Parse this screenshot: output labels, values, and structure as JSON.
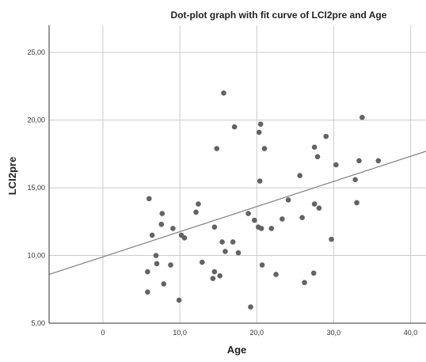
{
  "chart_data": {
    "type": "scatter",
    "title": "Dot-plot graph with fit curve of LCI2pre and Age",
    "xlabel": "Age",
    "ylabel": "LCI2pre",
    "xlim": [
      -7,
      42
    ],
    "ylim": [
      5,
      27
    ],
    "grid": true,
    "legend": "none",
    "x_ticks": [
      "0",
      "10,0",
      "20,0",
      "30,0",
      "40,0"
    ],
    "x_tick_values": [
      0,
      10,
      20,
      30,
      40
    ],
    "y_ticks": [
      "5,00",
      "10,00",
      "15,00",
      "20,00",
      "25,00"
    ],
    "y_tick_values": [
      5,
      10,
      15,
      20,
      25
    ],
    "points": [
      {
        "x": 5.8,
        "y": 7.3
      },
      {
        "x": 5.8,
        "y": 8.8
      },
      {
        "x": 6.0,
        "y": 14.2
      },
      {
        "x": 6.4,
        "y": 11.5
      },
      {
        "x": 6.9,
        "y": 10.0
      },
      {
        "x": 7.0,
        "y": 9.4
      },
      {
        "x": 7.6,
        "y": 12.3
      },
      {
        "x": 7.7,
        "y": 13.1
      },
      {
        "x": 7.9,
        "y": 7.9
      },
      {
        "x": 8.8,
        "y": 9.3
      },
      {
        "x": 9.1,
        "y": 12.0
      },
      {
        "x": 9.9,
        "y": 6.7
      },
      {
        "x": 10.2,
        "y": 11.5
      },
      {
        "x": 10.6,
        "y": 11.3
      },
      {
        "x": 12.1,
        "y": 13.2
      },
      {
        "x": 12.4,
        "y": 13.8
      },
      {
        "x": 12.9,
        "y": 9.5
      },
      {
        "x": 14.3,
        "y": 8.3
      },
      {
        "x": 14.5,
        "y": 8.8
      },
      {
        "x": 14.5,
        "y": 12.1
      },
      {
        "x": 14.8,
        "y": 17.9
      },
      {
        "x": 15.2,
        "y": 8.5
      },
      {
        "x": 15.5,
        "y": 11.0
      },
      {
        "x": 15.7,
        "y": 22.0
      },
      {
        "x": 15.9,
        "y": 10.3
      },
      {
        "x": 16.9,
        "y": 11.0
      },
      {
        "x": 17.1,
        "y": 19.5
      },
      {
        "x": 17.6,
        "y": 10.2
      },
      {
        "x": 18.9,
        "y": 13.1
      },
      {
        "x": 19.2,
        "y": 6.2
      },
      {
        "x": 19.7,
        "y": 12.6
      },
      {
        "x": 20.2,
        "y": 12.1
      },
      {
        "x": 20.3,
        "y": 19.1
      },
      {
        "x": 20.4,
        "y": 15.5
      },
      {
        "x": 20.5,
        "y": 19.7
      },
      {
        "x": 20.6,
        "y": 12.0
      },
      {
        "x": 20.7,
        "y": 9.3
      },
      {
        "x": 21.0,
        "y": 17.9
      },
      {
        "x": 21.9,
        "y": 12.0
      },
      {
        "x": 22.5,
        "y": 8.6
      },
      {
        "x": 23.3,
        "y": 12.7
      },
      {
        "x": 24.1,
        "y": 14.1
      },
      {
        "x": 25.6,
        "y": 15.9
      },
      {
        "x": 25.9,
        "y": 12.8
      },
      {
        "x": 26.2,
        "y": 8.0
      },
      {
        "x": 27.4,
        "y": 8.7
      },
      {
        "x": 27.5,
        "y": 13.8
      },
      {
        "x": 27.5,
        "y": 18.0
      },
      {
        "x": 27.9,
        "y": 17.3
      },
      {
        "x": 28.1,
        "y": 13.5
      },
      {
        "x": 29.0,
        "y": 18.8
      },
      {
        "x": 29.7,
        "y": 11.2
      },
      {
        "x": 30.3,
        "y": 16.7
      },
      {
        "x": 32.8,
        "y": 15.6
      },
      {
        "x": 33.0,
        "y": 13.9
      },
      {
        "x": 33.3,
        "y": 17.0
      },
      {
        "x": 33.7,
        "y": 20.2
      },
      {
        "x": 35.8,
        "y": 17.0
      }
    ],
    "fit_line": {
      "x": [
        -7,
        42
      ],
      "y": [
        8.6,
        17.7
      ]
    },
    "colors": {
      "point": "#636363",
      "fit_line": "#7f7f7f",
      "grid": "#cccccc",
      "axis": "#333333",
      "background": "#ffffff"
    }
  }
}
